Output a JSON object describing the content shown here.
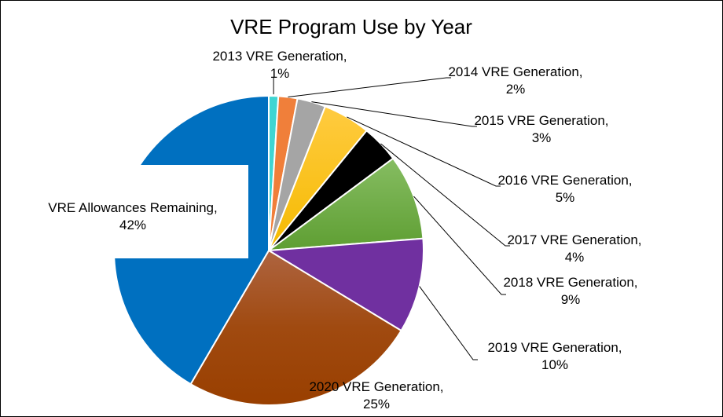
{
  "chart_data": {
    "type": "pie",
    "title": "VRE Program Use by Year",
    "start_angle": "12 o'clock, clockwise",
    "slices": [
      {
        "label": "2013 VRE Generation",
        "value": 1,
        "pct_label": "1%",
        "color": "#3FD5D2"
      },
      {
        "label": "2014 VRE Generation",
        "value": 2,
        "pct_label": "2%",
        "color": "#F07F3A"
      },
      {
        "label": "2015 VRE Generation",
        "value": 3,
        "pct_label": "3%",
        "color": "#A5A5A5"
      },
      {
        "label": "2016 VRE Generation",
        "value": 5,
        "pct_label": "5%",
        "color": "#FFC000"
      },
      {
        "label": "2017 VRE Generation",
        "value": 4,
        "pct_label": "4%",
        "color": "#000000"
      },
      {
        "label": "2018 VRE Generation",
        "value": 9,
        "pct_label": "9%",
        "color": "#6AAA3C"
      },
      {
        "label": "2019 VRE Generation",
        "value": 10,
        "pct_label": "10%",
        "color": "#7030A0"
      },
      {
        "label": "2020 VRE Generation",
        "value": 25,
        "pct_label": "25%",
        "color": "#A0460F"
      },
      {
        "label": "VRE Allowances Remaining",
        "value": 42,
        "pct_label": "42%",
        "color": "#0070C0"
      }
    ]
  }
}
